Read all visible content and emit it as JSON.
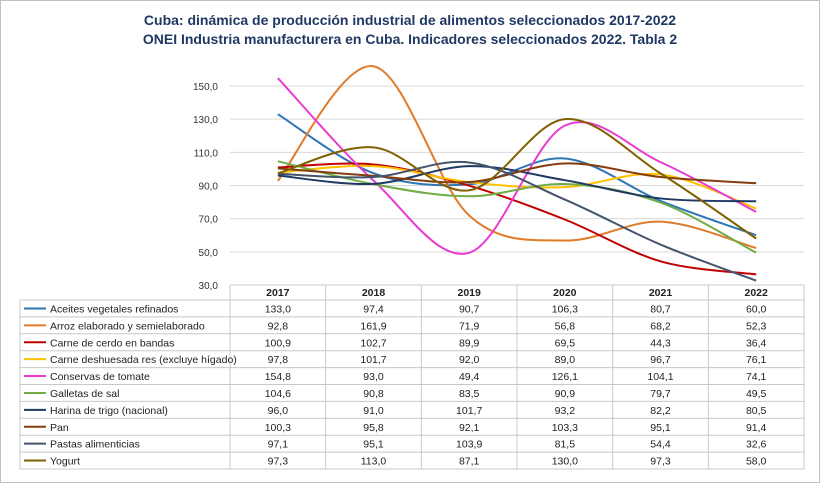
{
  "chart_data": {
    "type": "line",
    "title": "Cuba: dinámica de producción industrial de alimentos seleccionados  2017-2022",
    "subtitle": "ONEI Industria manufacturera en Cuba. Indicadores seleccionados 2022. Tabla 2",
    "categories": [
      "2017",
      "2018",
      "2019",
      "2020",
      "2021",
      "2022"
    ],
    "ylim": [
      30,
      150
    ],
    "yticks": [
      "30,0",
      "50,0",
      "70,0",
      "90,0",
      "110,0",
      "130,0",
      "150,0"
    ],
    "grid": true,
    "legend": "data-table",
    "series": [
      {
        "name": "Aceites vegetales refinados",
        "color": "#2e75b6",
        "values": [
          133.0,
          97.4,
          90.7,
          106.3,
          80.7,
          60.0
        ],
        "labels": [
          "133,0",
          "97,4",
          "90,7",
          "106,3",
          "80,7",
          "60,0"
        ]
      },
      {
        "name": "Arroz elaborado y semielaborado",
        "color": "#e07b2a",
        "values": [
          92.8,
          161.9,
          71.9,
          56.8,
          68.2,
          52.3
        ],
        "labels": [
          "92,8",
          "161,9",
          "71,9",
          "56,8",
          "68,2",
          "52,3"
        ]
      },
      {
        "name": "Carne de cerdo en bandas",
        "color": "#c00000",
        "values": [
          100.9,
          102.7,
          89.9,
          69.5,
          44.3,
          36.4
        ],
        "labels": [
          "100,9",
          "102,7",
          "89,9",
          "69,5",
          "44,3",
          "36,4"
        ]
      },
      {
        "name": "Carne deshuesada res (excluye hígado)",
        "color": "#ffc000",
        "values": [
          97.8,
          101.7,
          92.0,
          89.0,
          96.7,
          76.1
        ],
        "labels": [
          "97,8",
          "101,7",
          "92,0",
          "89,0",
          "96,7",
          "76,1"
        ]
      },
      {
        "name": "Conservas de tomate",
        "color": "#e83bd2",
        "values": [
          154.8,
          93.0,
          49.4,
          126.1,
          104.1,
          74.1
        ],
        "labels": [
          "154,8",
          "93,0",
          "49,4",
          "126,1",
          "104,1",
          "74,1"
        ]
      },
      {
        "name": "Galletas de sal",
        "color": "#70ad47",
        "values": [
          104.6,
          90.8,
          83.5,
          90.9,
          79.7,
          49.5
        ],
        "labels": [
          "104,6",
          "90,8",
          "83,5",
          "90,9",
          "79,7",
          "49,5"
        ]
      },
      {
        "name": "Harina de trigo (nacional)",
        "color": "#1f3864",
        "values": [
          96.0,
          91.0,
          101.7,
          93.2,
          82.2,
          80.5
        ],
        "labels": [
          "96,0",
          "91,0",
          "101,7",
          "93,2",
          "82,2",
          "80,5"
        ]
      },
      {
        "name": "Pan",
        "color": "#843c0c",
        "values": [
          100.3,
          95.8,
          92.1,
          103.3,
          95.1,
          91.4
        ],
        "labels": [
          "100,3",
          "95,8",
          "92,1",
          "103,3",
          "95,1",
          "91,4"
        ]
      },
      {
        "name": "Pastas alimenticias",
        "color": "#44546a",
        "values": [
          97.1,
          95.1,
          103.9,
          81.5,
          54.4,
          32.6
        ],
        "labels": [
          "97,1",
          "95,1",
          "103,9",
          "81,5",
          "54,4",
          "32,6"
        ]
      },
      {
        "name": "Yogurt",
        "color": "#806000",
        "values": [
          97.3,
          113.0,
          87.1,
          130.0,
          97.3,
          58.0
        ],
        "labels": [
          "97,3",
          "113,0",
          "87,1",
          "130,0",
          "97,3",
          "58,0"
        ]
      }
    ]
  }
}
